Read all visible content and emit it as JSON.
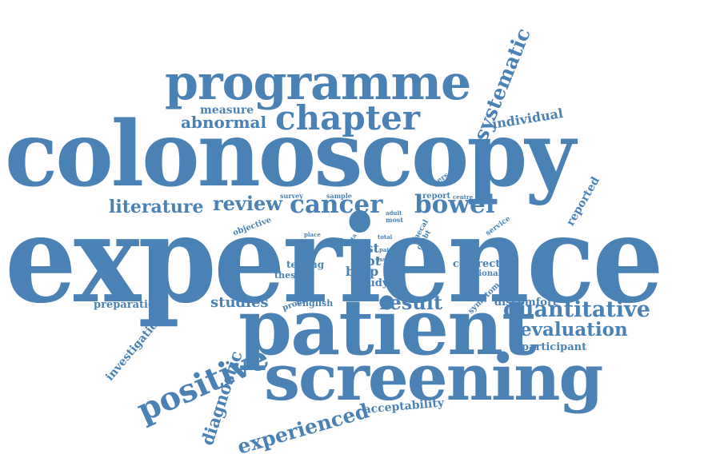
{
  "colors": {
    "text": "#4a82b6",
    "background": "#ffffff"
  },
  "words": {
    "experience": "experience",
    "colonoscopy": "colonoscopy",
    "patient": "patient",
    "screening": "screening",
    "programme": "programme",
    "chapter": "chapter",
    "systematic": "systematic",
    "cancer": "cancer",
    "bowel": "bowel",
    "review": "review",
    "literature": "literature",
    "positive": "positive",
    "quantitative": "quantitative",
    "evaluation": "evaluation",
    "result": "result",
    "experienced": "experienced",
    "diagnostic": "diagnostic",
    "studies": "studies",
    "abnormal": "abnormal",
    "individual": "individual",
    "measure": "measure",
    "investigation": "investigation",
    "preparation": "preparation",
    "acceptability": "acceptability",
    "test": "test",
    "fobt": "fobt",
    "bcsp": "bcsp",
    "study": "study",
    "testing": "testing",
    "thesis": "thesis",
    "english": "english",
    "provide": "provide",
    "colorectal": "colorectal",
    "national": "national",
    "discomfort": "discomfort",
    "participant": "participant",
    "symptom": "symptom",
    "reported": "reported",
    "service": "service",
    "person": "person",
    "objective": "objective",
    "survey": "survey",
    "sample": "sample",
    "report": "report",
    "centre": "centre",
    "adult": "adult",
    "most": "most",
    "faecal": "faecal",
    "gfobt": "gfobt",
    "place": "place",
    "data": "data",
    "total": "total",
    "pain": "pain",
    "issue": "issue"
  }
}
